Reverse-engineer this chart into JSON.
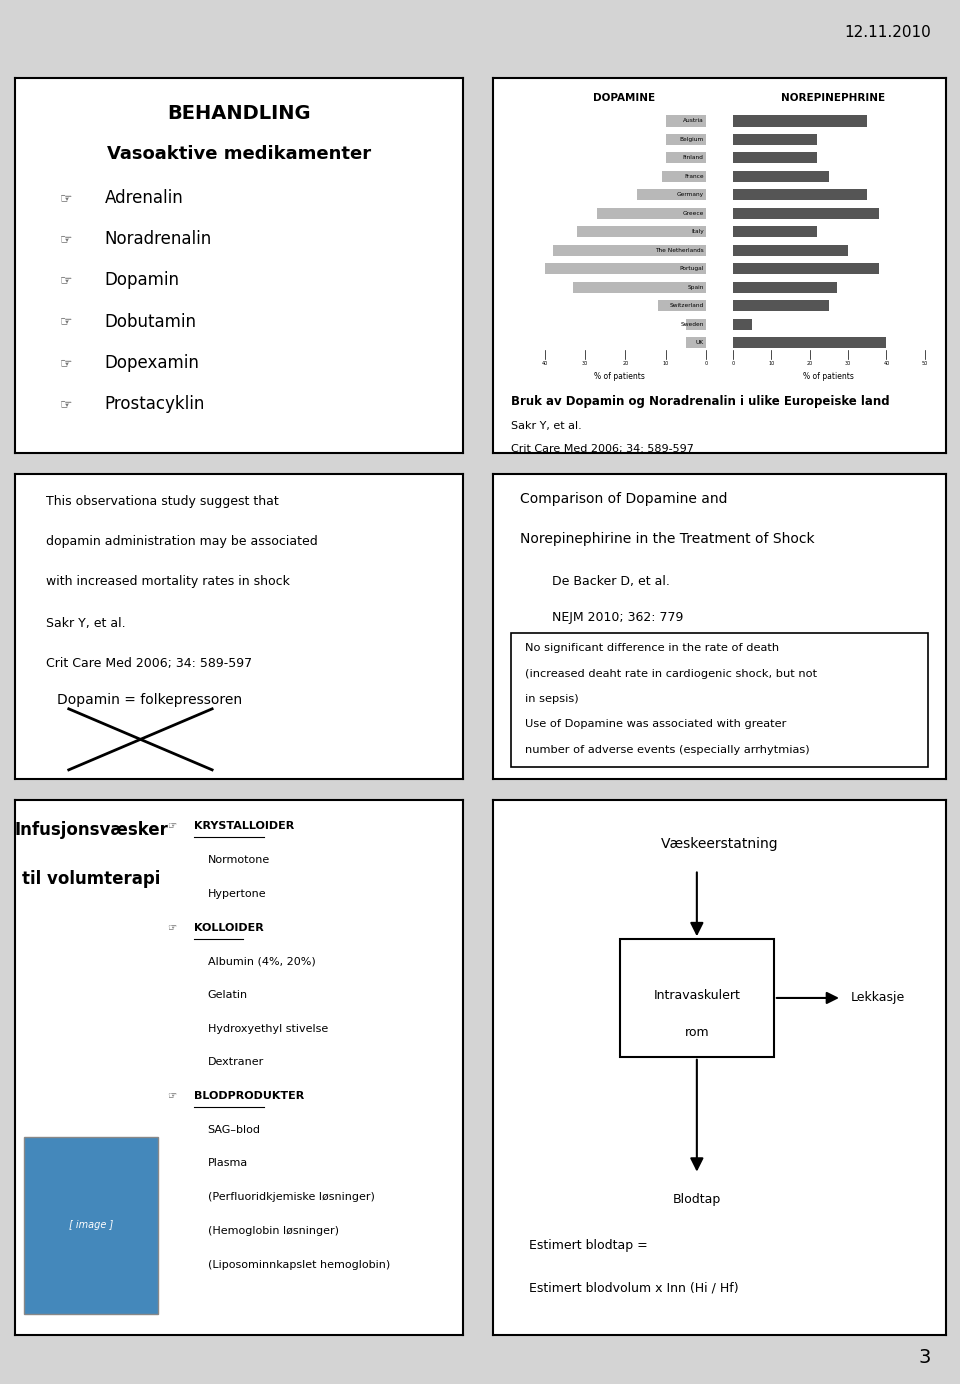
{
  "date_text": "12.11.2010",
  "page_number": "3",
  "slide_bg": "#d4d4d4",
  "panel1": {
    "title_line1": "BEHANDLING",
    "title_line2": "Vasoaktive medikamenter",
    "items": [
      "Adrenalin",
      "Noradrenalin",
      "Dopamin",
      "Dobutamin",
      "Dopexamin",
      "Prostacyklin"
    ]
  },
  "panel2": {
    "chart_title_left": "DOPAMINE",
    "chart_title_right": "NOREPINEPHRINE",
    "countries": [
      "Austria",
      "Belgium",
      "Finland",
      "France",
      "Germany",
      "Greece",
      "Italy",
      "The Netherlands",
      "Portugal",
      "Spain",
      "Switzerland",
      "Sweden",
      "UK"
    ],
    "dopamine_vals": [
      10,
      10,
      10,
      11,
      17,
      27,
      32,
      38,
      40,
      33,
      12,
      5,
      5
    ],
    "norepi_vals": [
      35,
      22,
      22,
      25,
      35,
      38,
      22,
      30,
      38,
      27,
      25,
      5,
      40
    ],
    "caption_bold": "Bruk av Dopamin og Noradrenalin i ulike Europeiske land",
    "caption_ref1": "Sakr Y, et al.",
    "caption_ref2": "Crit Care Med 2006; 34: 589-597"
  },
  "panel3": {
    "text1": "This observationa study suggest that",
    "text2": "dopamin administration may be associated",
    "text3": "with increased mortality rates in shock",
    "ref1": "Sakr Y, et al.",
    "ref2": "Crit Care Med 2006; 34: 589-597",
    "label": "Dopamin = folkepressoren"
  },
  "panel4": {
    "title_line1": "Comparison of Dopamine and",
    "title_line2": "Norepinephirine in the Treatment of Shock",
    "ref1": "De Backer D, et al.",
    "ref2": "NEJM 2010; 362: 779",
    "box_text1": "No significant difference in the rate of death",
    "box_text2": "(increased deaht rate in cardiogenic shock, but not",
    "box_text3": "in sepsis)",
    "box_text4": "Use of Dopamine was associated with greater",
    "box_text5": "number of adverse events (especially arrhytmias)"
  },
  "panel5": {
    "title_line1": "Infusjonsvæsker",
    "title_line2": "til volumterapi",
    "items": [
      {
        "text": "KRYSTALLOIDER",
        "underline": true,
        "bullet": true,
        "indent": false
      },
      {
        "text": "Normotone",
        "underline": false,
        "bullet": false,
        "indent": true
      },
      {
        "text": "Hypertone",
        "underline": false,
        "bullet": false,
        "indent": true
      },
      {
        "text": "KOLLOIDER",
        "underline": true,
        "bullet": true,
        "indent": false
      },
      {
        "text": "Albumin (4%, 20%)",
        "underline": false,
        "bullet": false,
        "indent": true
      },
      {
        "text": "Gelatin",
        "underline": false,
        "bullet": false,
        "indent": true
      },
      {
        "text": "Hydroxyethyl stivelse",
        "underline": false,
        "bullet": false,
        "indent": true
      },
      {
        "text": "Dextraner",
        "underline": false,
        "bullet": false,
        "indent": true
      },
      {
        "text": "BLODPRODUKTER",
        "underline": true,
        "bullet": true,
        "indent": false
      },
      {
        "text": "SAG–blod",
        "underline": false,
        "bullet": false,
        "indent": true
      },
      {
        "text": "Plasma",
        "underline": false,
        "bullet": false,
        "indent": true
      },
      {
        "text": "(Perfluoridkjemiske løsninger)",
        "underline": false,
        "bullet": false,
        "indent": true
      },
      {
        "text": "(Hemoglobin løsninger)",
        "underline": false,
        "bullet": false,
        "indent": true
      },
      {
        "text": "(Liposominnkapslet hemoglobin)",
        "underline": false,
        "bullet": false,
        "indent": true
      }
    ]
  },
  "panel6": {
    "title": "Væskeerstatning",
    "box_label_line1": "Intravaskulert",
    "box_label_line2": "rom",
    "arrow_right_label": "Lekkasje",
    "arrow_down_label": "Blodtap",
    "formula_line1": "Estimert blodtap =",
    "formula_line2": "Estimert blodvolum x Inn (Hi / Hf)"
  }
}
